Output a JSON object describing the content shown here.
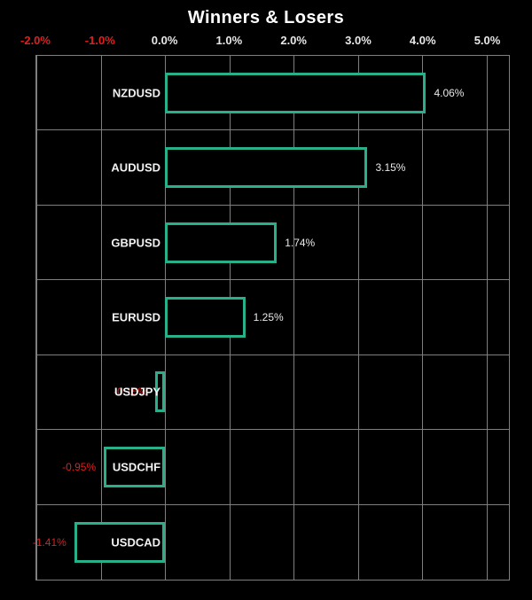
{
  "title": "Winners & Losers",
  "colors": {
    "background": "#000000",
    "bar_border": "#28b08a",
    "bar_fill": "#000000",
    "grid": "#7f7f7f",
    "positive_text": "#e9e9e9",
    "negative_text": "#e01f1f",
    "title_text": "#ffffff"
  },
  "chart_data": {
    "type": "bar",
    "orientation": "horizontal",
    "title": "Winners & Losers",
    "xlabel": "",
    "ylabel": "",
    "xlim": [
      -2.0,
      5.35
    ],
    "grid": true,
    "legend": false,
    "ticks": [
      {
        "label": "-2.0%",
        "value": -2.0,
        "negative": true
      },
      {
        "label": "-1.0%",
        "value": -1.0,
        "negative": true
      },
      {
        "label": "0.0%",
        "value": 0.0,
        "negative": false
      },
      {
        "label": "1.0%",
        "value": 1.0,
        "negative": false
      },
      {
        "label": "2.0%",
        "value": 2.0,
        "negative": false
      },
      {
        "label": "3.0%",
        "value": 3.0,
        "negative": false
      },
      {
        "label": "4.0%",
        "value": 4.0,
        "negative": false
      },
      {
        "label": "5.0%",
        "value": 5.0,
        "negative": false
      }
    ],
    "categories": [
      "NZDUSD",
      "AUDUSD",
      "GBPUSD",
      "EURUSD",
      "USDJPY",
      "USDCHF",
      "USDCAD"
    ],
    "values": [
      4.06,
      3.15,
      1.74,
      1.25,
      -0.15,
      -0.95,
      -1.41
    ],
    "value_labels": [
      "4.06%",
      "3.15%",
      "1.74%",
      "1.25%",
      "-0.15%",
      "-0.95%",
      "-1.41%"
    ]
  }
}
